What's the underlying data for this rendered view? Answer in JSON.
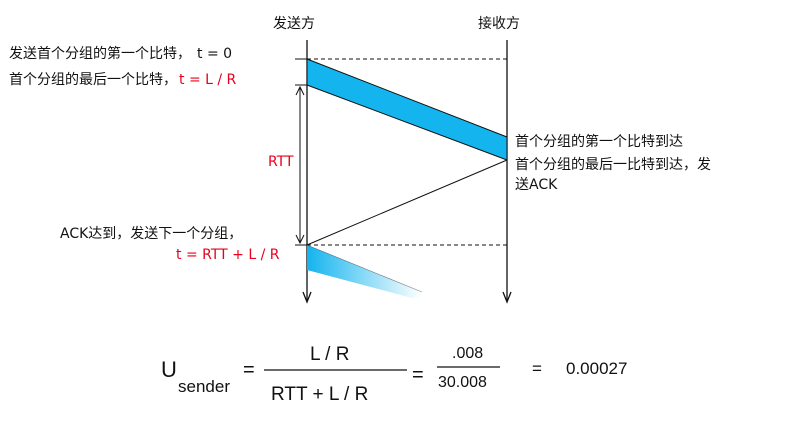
{
  "sender_label": "发送方",
  "receiver_label": "接收方",
  "left_annotations": {
    "first_bit": {
      "text": "发送首个分组的第一个比特，",
      "time": "t = 0"
    },
    "last_bit": {
      "text": "首个分组的最后一个比特，",
      "time": "t = L / R"
    },
    "rtt": "RTT",
    "ack_arrives": {
      "text": "ACK达到，发送下一个分组，",
      "time": "t = RTT + L / R"
    }
  },
  "right_annotations": {
    "first_bit_arrives": "首个分组的第一个比特到达",
    "last_bit_arrives_line1": "首个分组的最后一比特到达，发",
    "last_bit_arrives_line2": "送ACK"
  },
  "formula": {
    "u": "U",
    "sub": "sender",
    "eq1": "=",
    "num1": "L / R",
    "den1": "RTT + L / R",
    "eq2": "=",
    "num2": ".008",
    "den2": "30.008",
    "eq3": "=",
    "result": "0.00027"
  },
  "colors": {
    "packet_fill": "#14b4ee",
    "packet_fade": "#ffffff",
    "time_red": "#e8001c",
    "line": "#111111"
  }
}
